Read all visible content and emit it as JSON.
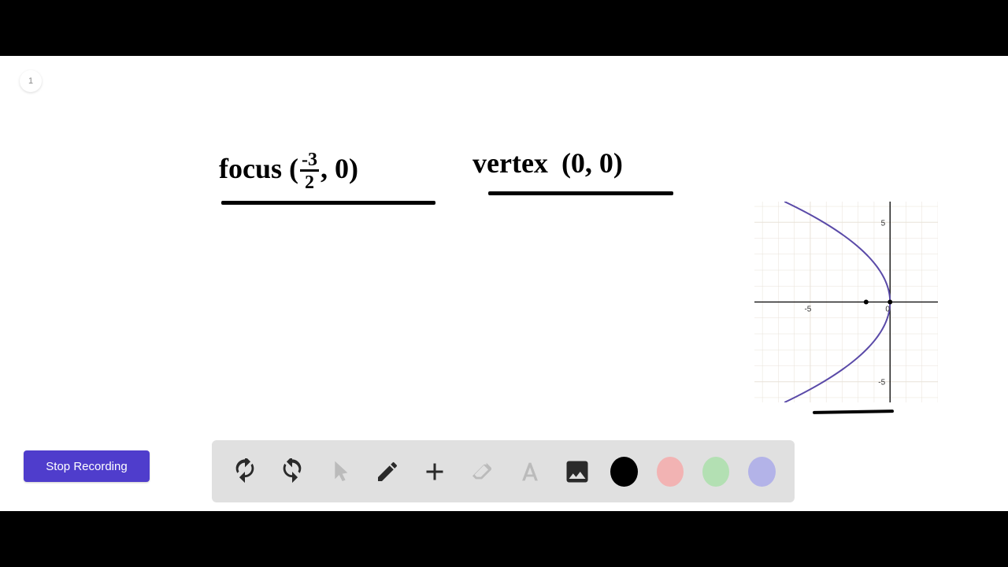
{
  "page_badge": "1",
  "handwriting": {
    "focus_label": "focus",
    "focus_point_open": "(",
    "focus_fraction_num": "-3",
    "focus_fraction_den": "2",
    "focus_point_rest": ", 0)",
    "vertex_label": "vertex",
    "vertex_point": "(0, 0)"
  },
  "graph": {
    "type": "parabola",
    "background": "#ffffff",
    "grid_color": "#e8e2d8",
    "axis_color": "#000000",
    "curve_color": "#5a4aa8",
    "curve_width": 2,
    "xlim": [
      -8.5,
      3
    ],
    "ylim": [
      -6.3,
      6.3
    ],
    "x_ticks": [
      -5,
      0
    ],
    "y_ticks": [
      -5,
      5
    ],
    "tick_labels": {
      "x": [
        "-5",
        "0"
      ],
      "y": [
        "-5",
        "5"
      ]
    },
    "tick_fontsize": 10,
    "vertex_pt": [
      0,
      0
    ],
    "focus_pt": [
      -1.5,
      0
    ],
    "dot_radius": 3,
    "parabola_eq": "y^2 = -6x",
    "parabola_points_y_range": [
      -6.3,
      6.3
    ]
  },
  "stop_button": "Stop Recording",
  "toolbar": {
    "tools": [
      {
        "name": "undo",
        "disabled": false
      },
      {
        "name": "redo",
        "disabled": false
      },
      {
        "name": "pointer",
        "disabled": true
      },
      {
        "name": "pencil",
        "disabled": false
      },
      {
        "name": "shapes",
        "disabled": false
      },
      {
        "name": "eraser",
        "disabled": true
      },
      {
        "name": "text",
        "disabled": true
      },
      {
        "name": "image",
        "disabled": false
      }
    ],
    "colors": [
      {
        "name": "black",
        "hex": "#000000"
      },
      {
        "name": "pink",
        "hex": "#f2b3b3"
      },
      {
        "name": "green",
        "hex": "#b3e0b3"
      },
      {
        "name": "purple",
        "hex": "#b3b3e8"
      }
    ]
  },
  "colors": {
    "letterbox": "#000000",
    "canvas_bg": "#ffffff",
    "toolbar_bg": "#e0e0e0",
    "button_bg": "#4f3dcc",
    "button_text": "#ffffff"
  }
}
